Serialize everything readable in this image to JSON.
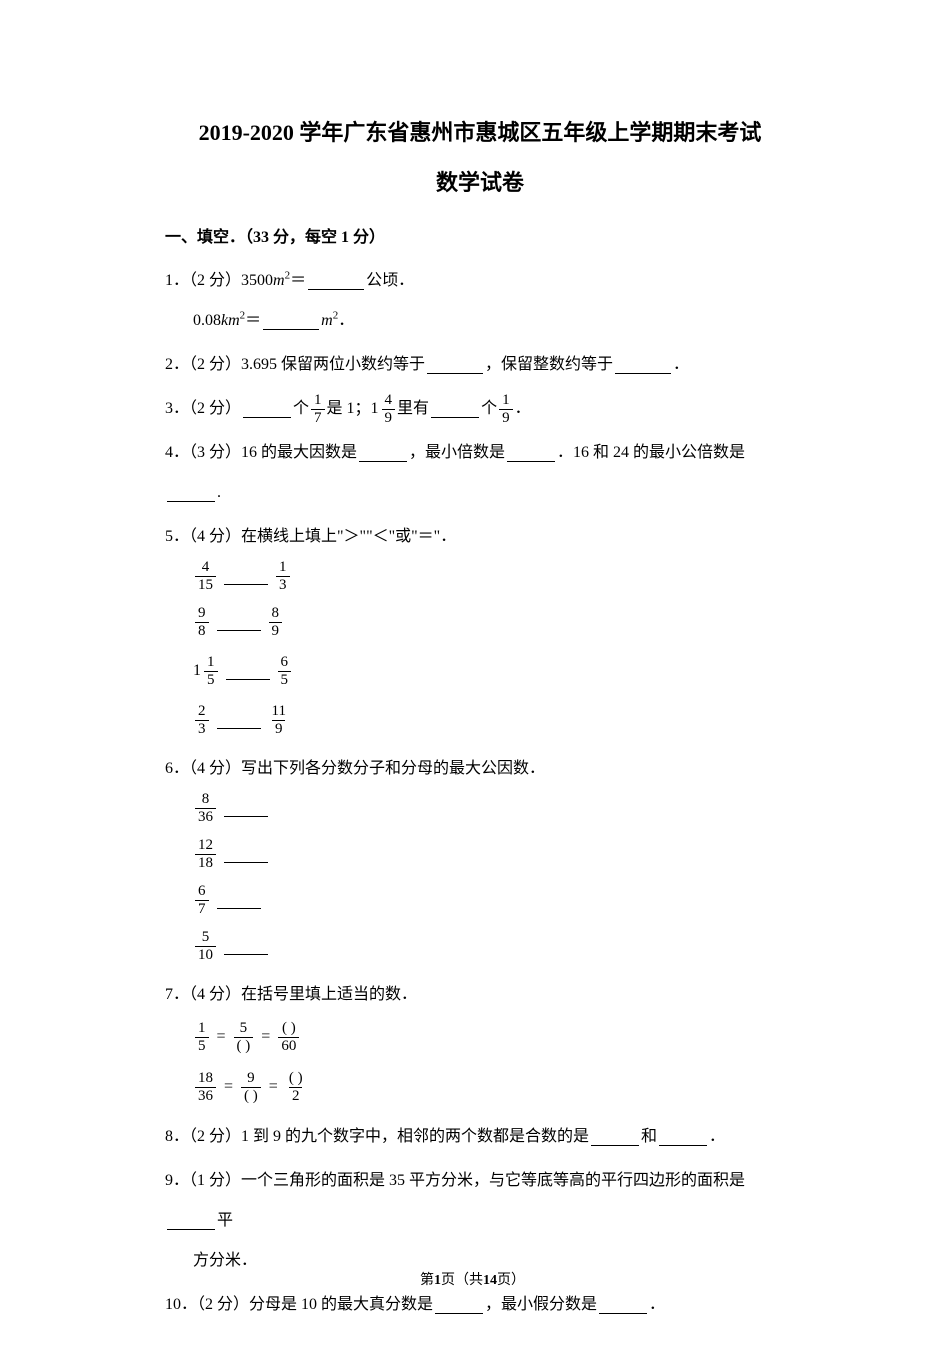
{
  "title": "2019-2020 学年广东省惠州市惠城区五年级上学期期末考试",
  "subtitle": "数学试卷",
  "section1_header": "一、填空．（33 分，每空 1 分）",
  "q1": {
    "label": "1．（2 分）3500",
    "unit1": "m",
    "eq": "＝",
    "after1": "公顷．",
    "line2_pre": "0.08",
    "line2_unit": "km",
    "line2_eq": "＝",
    "line2_after": "m",
    "line2_end": "．"
  },
  "q2": {
    "label": "2．（2 分）3.695 保留两位小数约等于",
    "mid": "，保留整数约等于",
    "end": "．"
  },
  "q3": {
    "label": "3．（2 分）",
    "t1": "个",
    "f1n": "1",
    "f1d": "7",
    "t2": "是 1；",
    "mixed_whole": "1",
    "mixed_n": "4",
    "mixed_d": "9",
    "t3": "里有",
    "t4": "个",
    "f2n": "1",
    "f2d": "9",
    "end": "．"
  },
  "q4": {
    "label": "4．（3 分）16 的最大因数是",
    "t1": "，最小倍数是",
    "t2": "．16 和 24 的最小公倍数是",
    "end": "."
  },
  "q5": {
    "label": "5．（4 分）在横线上填上\"＞\"\"＜\"或\"＝\"．",
    "rows": [
      {
        "ln": "4",
        "ld": "15",
        "rn": "1",
        "rd": "3"
      },
      {
        "ln": "9",
        "ld": "8",
        "rn": "8",
        "rd": "9"
      },
      {
        "lw": "1",
        "ln": "1",
        "ld": "5",
        "rn": "6",
        "rd": "5"
      },
      {
        "ln": "2",
        "ld": "3",
        "rn": "11",
        "rd": "9"
      }
    ]
  },
  "q6": {
    "label": "6．（4 分）写出下列各分数分子和分母的最大公因数．",
    "rows": [
      {
        "n": "8",
        "d": "36"
      },
      {
        "n": "12",
        "d": "18"
      },
      {
        "n": "6",
        "d": "7"
      },
      {
        "n": "5",
        "d": "10"
      }
    ]
  },
  "q7": {
    "label": "7．（4 分）在括号里填上适当的数．",
    "row1": {
      "an": "1",
      "ad": "5",
      "bn": "5",
      "cd": "60"
    },
    "row2": {
      "an": "18",
      "ad": "36",
      "bn": "9",
      "cd": "2"
    }
  },
  "q8": {
    "label": "8．（2 分）1 到 9 的九个数字中，相邻的两个数都是合数的是",
    "t1": "和",
    "end": "．"
  },
  "q9": {
    "label": "9．（1 分）一个三角形的面积是 35 平方分米，与它等底等高的平行四边形的面积是",
    "t1": "平",
    "line2": "方分米．"
  },
  "q10": {
    "label": "10．（2 分）分母是 10 的最大真分数是",
    "t1": "，最小假分数是",
    "end": "．"
  },
  "footer": {
    "pre": "第",
    "page": "1",
    "mid": "页（共",
    "total": "14",
    "post": "页）"
  },
  "paren_open": "(",
  "paren_close": ")"
}
